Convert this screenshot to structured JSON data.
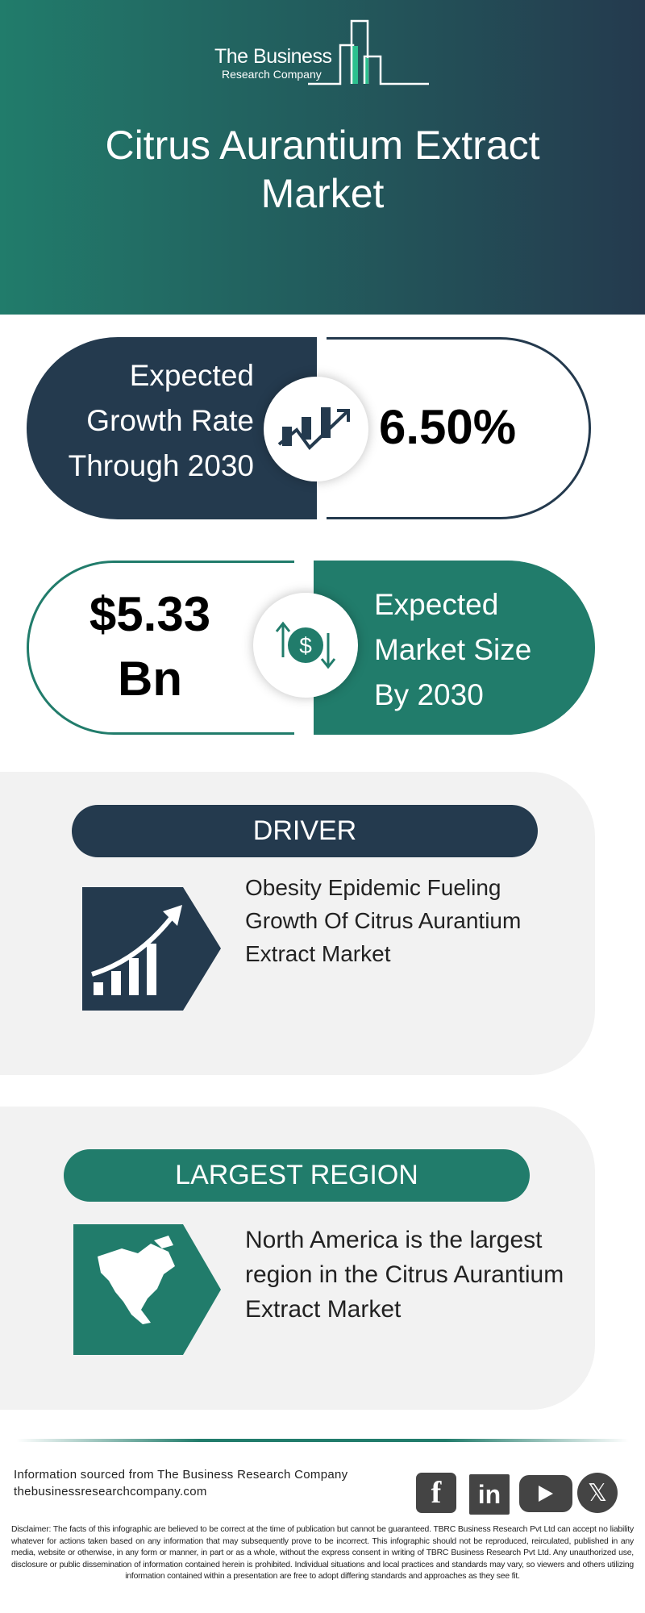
{
  "colors": {
    "navy": "#243a4e",
    "green": "#217c6b",
    "panel": "#f2f2f2"
  },
  "logo": {
    "line1": "The Business",
    "line2": "Research Company"
  },
  "title": {
    "line1": "Citrus Aurantium Extract",
    "line2": "Market"
  },
  "growth": {
    "label_lines": [
      "Expected",
      "Growth Rate",
      "Through 2030"
    ],
    "value": "6.50%",
    "icon": "growth-chart-icon"
  },
  "market_size": {
    "value_line1": "$5.33",
    "value_line2": "Bn",
    "label_lines": [
      "Expected",
      "Market Size",
      "By 2030"
    ],
    "icon": "dollar-exchange-icon"
  },
  "driver": {
    "heading": "DRIVER",
    "text_lines": [
      "Obesity Epidemic Fueling",
      "Growth Of Citrus Aurantium",
      "Extract Market"
    ],
    "icon": "rising-bars-icon"
  },
  "region": {
    "heading": "LARGEST REGION",
    "text_lines": [
      "North America is the largest",
      "region in the Citrus Aurantium",
      "Extract Market"
    ],
    "icon": "north-america-map-icon"
  },
  "footer": {
    "source": "Information sourced from The Business Research Company",
    "website": "thebusinessresearchcompany.com",
    "social": [
      "facebook",
      "linkedin",
      "youtube",
      "x"
    ]
  },
  "disclaimer": "Disclaimer: The facts of this infographic are believed to be correct at the time of publication but cannot be guaranteed. TBRC Business Research Pvt Ltd can accept no liability whatever for actions taken based on any information that may subsequently prove to be incorrect. This infographic should not be reproduced, reirculated, published in any media, website or otherwise, in any form or manner, in part or as a whole, without the express consent in writing of TBRC Business Research Pvt Ltd. Any unauthorized use, disclosure or public dissemination of information contained herein is prohibited. Individual situations and local practices and standards may vary, so viewers and others utilizing information contained within a presentation are free to adopt differing standards and approaches as they see fit."
}
